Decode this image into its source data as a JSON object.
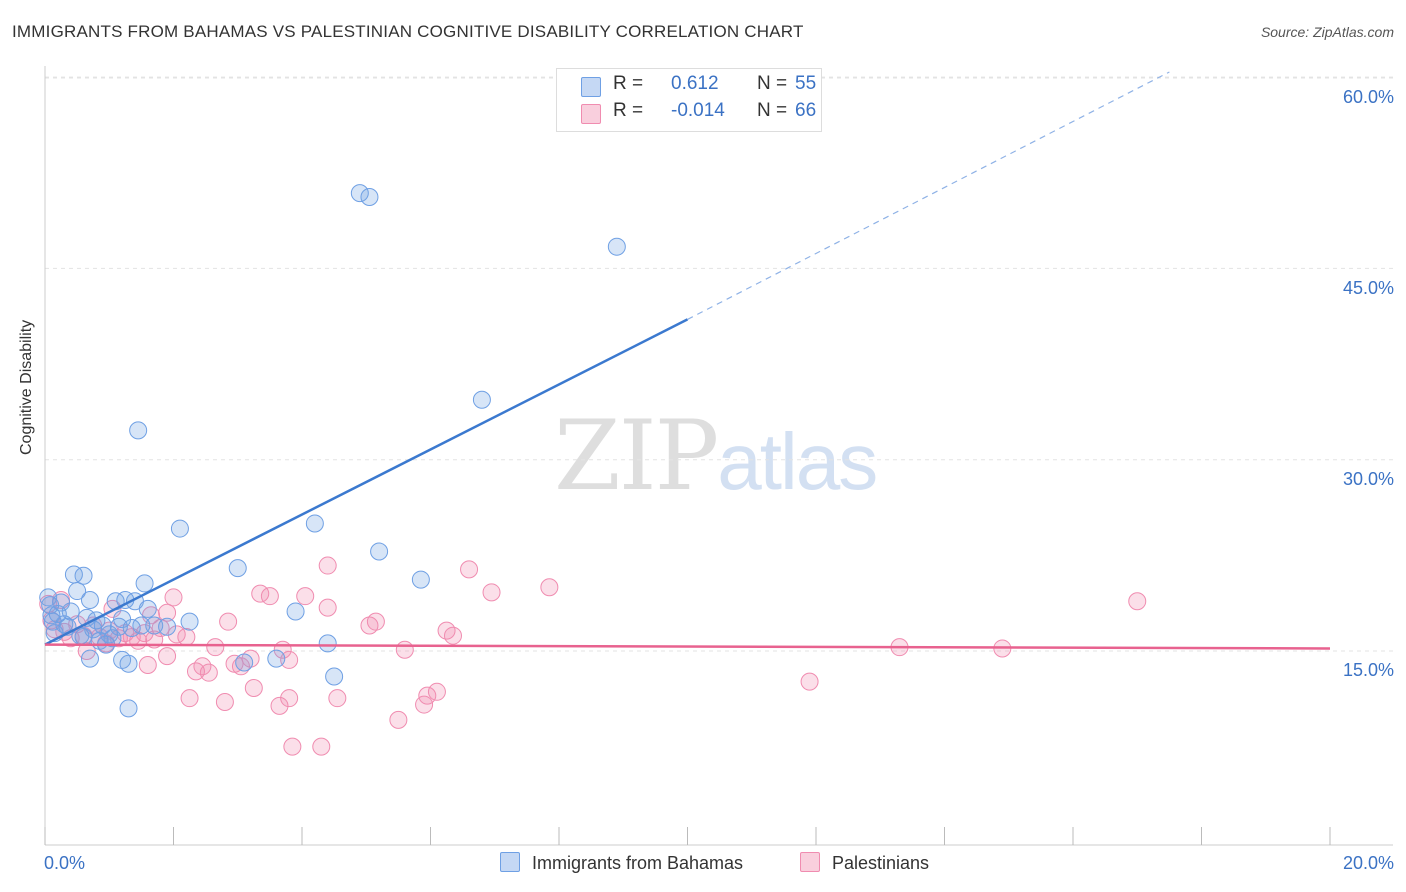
{
  "title": "IMMIGRANTS FROM BAHAMAS VS PALESTINIAN COGNITIVE DISABILITY CORRELATION CHART",
  "source": "Source: ZipAtlas.com",
  "watermark": {
    "zip": "ZIP",
    "atlas": "atlas"
  },
  "legend_top": {
    "rows": [
      {
        "r_label": "R =",
        "r_value": "0.612",
        "n_label": "N =",
        "n_value": "55",
        "color": "#6fa0e4"
      },
      {
        "r_label": "R =",
        "r_value": "-0.014",
        "n_label": "N =",
        "n_value": "66",
        "color": "#f08cb0"
      }
    ]
  },
  "legend_bottom": {
    "items": [
      {
        "label": "Immigrants from Bahamas",
        "color": "#6fa0e4"
      },
      {
        "label": "Palestinians",
        "color": "#f08cb0"
      }
    ]
  },
  "chart_data": {
    "type": "scatter",
    "title": "IMMIGRANTS FROM BAHAMAS VS PALESTINIAN COGNITIVE DISABILITY CORRELATION CHART",
    "xlabel": "",
    "ylabel": "Cognitive Disability",
    "xlim": [
      0,
      20
    ],
    "ylim": [
      0,
      61.5
    ],
    "x_tick_labels": [
      "0.0%",
      "20.0%"
    ],
    "y_ticks": [
      15,
      30,
      45,
      60
    ],
    "y_tick_labels": [
      "15.0%",
      "30.0%",
      "45.0%",
      "60.0%"
    ],
    "grid": true,
    "legend_placement": "bottom",
    "series": [
      {
        "name": "Immigrants from Bahamas",
        "color": "#6fa0e4",
        "trend": {
          "x0": 0.0,
          "y0": 15.5,
          "x1": 10.0,
          "y1": 41.0,
          "dashed_to_x": 17.5,
          "dashed_to_y": 60.4
        },
        "points": [
          [
            0.05,
            19.2
          ],
          [
            0.08,
            18.6
          ],
          [
            0.1,
            17.8
          ],
          [
            0.12,
            17.3
          ],
          [
            0.15,
            16.4
          ],
          [
            0.2,
            17.9
          ],
          [
            0.25,
            18.8
          ],
          [
            0.3,
            17.1
          ],
          [
            0.35,
            16.9
          ],
          [
            0.4,
            18.1
          ],
          [
            0.45,
            21.0
          ],
          [
            0.5,
            19.7
          ],
          [
            0.55,
            16.2
          ],
          [
            0.6,
            20.9
          ],
          [
            0.65,
            17.6
          ],
          [
            0.7,
            19.0
          ],
          [
            0.7,
            14.4
          ],
          [
            0.75,
            16.7
          ],
          [
            0.8,
            17.4
          ],
          [
            0.85,
            15.8
          ],
          [
            0.9,
            17.0
          ],
          [
            0.95,
            15.5
          ],
          [
            1.0,
            16.3
          ],
          [
            1.05,
            16.0
          ],
          [
            1.1,
            18.9
          ],
          [
            1.15,
            16.9
          ],
          [
            1.2,
            17.5
          ],
          [
            1.2,
            14.3
          ],
          [
            1.25,
            19.0
          ],
          [
            1.3,
            14.0
          ],
          [
            1.3,
            10.5
          ],
          [
            1.35,
            16.8
          ],
          [
            1.4,
            18.9
          ],
          [
            1.45,
            32.3
          ],
          [
            1.5,
            17.0
          ],
          [
            1.55,
            20.3
          ],
          [
            1.6,
            18.3
          ],
          [
            1.7,
            17.0
          ],
          [
            2.1,
            24.6
          ],
          [
            2.25,
            17.3
          ],
          [
            3.0,
            21.5
          ],
          [
            3.1,
            14.1
          ],
          [
            3.6,
            14.4
          ],
          [
            3.9,
            18.1
          ],
          [
            4.2,
            25.0
          ],
          [
            4.4,
            15.6
          ],
          [
            4.5,
            13.0
          ],
          [
            4.9,
            50.9
          ],
          [
            5.05,
            50.6
          ],
          [
            5.2,
            22.8
          ],
          [
            5.85,
            20.6
          ],
          [
            6.8,
            34.7
          ],
          [
            8.9,
            46.7
          ],
          [
            1.9,
            16.9
          ],
          [
            0.6,
            16.1
          ]
        ]
      },
      {
        "name": "Palestinians",
        "color": "#f08cb0",
        "trend": {
          "x0": 0.0,
          "y0": 15.5,
          "x1": 20.0,
          "y1": 15.2
        },
        "points": [
          [
            0.05,
            18.7
          ],
          [
            0.1,
            17.4
          ],
          [
            0.15,
            16.7
          ],
          [
            0.25,
            19.0
          ],
          [
            0.3,
            16.5
          ],
          [
            0.4,
            16.0
          ],
          [
            0.5,
            17.1
          ],
          [
            0.6,
            16.2
          ],
          [
            0.65,
            15.0
          ],
          [
            0.75,
            17.0
          ],
          [
            0.85,
            16.1
          ],
          [
            0.95,
            15.6
          ],
          [
            1.0,
            16.6
          ],
          [
            1.05,
            18.3
          ],
          [
            1.15,
            16.0
          ],
          [
            1.25,
            16.4
          ],
          [
            1.35,
            16.1
          ],
          [
            1.45,
            15.8
          ],
          [
            1.55,
            16.4
          ],
          [
            1.6,
            13.9
          ],
          [
            1.65,
            17.8
          ],
          [
            1.7,
            15.9
          ],
          [
            1.8,
            16.8
          ],
          [
            1.9,
            18.0
          ],
          [
            1.9,
            14.6
          ],
          [
            2.0,
            19.2
          ],
          [
            2.05,
            16.3
          ],
          [
            2.2,
            16.1
          ],
          [
            2.25,
            11.3
          ],
          [
            2.35,
            13.4
          ],
          [
            2.45,
            13.8
          ],
          [
            2.55,
            13.3
          ],
          [
            2.65,
            15.3
          ],
          [
            2.8,
            11.0
          ],
          [
            2.85,
            17.3
          ],
          [
            2.95,
            14.0
          ],
          [
            3.05,
            13.8
          ],
          [
            3.2,
            14.4
          ],
          [
            3.25,
            12.1
          ],
          [
            3.35,
            19.5
          ],
          [
            3.5,
            19.3
          ],
          [
            3.65,
            10.7
          ],
          [
            3.7,
            15.1
          ],
          [
            3.8,
            14.3
          ],
          [
            3.8,
            11.3
          ],
          [
            3.85,
            7.5
          ],
          [
            4.05,
            19.3
          ],
          [
            4.3,
            7.5
          ],
          [
            4.4,
            21.7
          ],
          [
            4.4,
            18.4
          ],
          [
            4.55,
            11.3
          ],
          [
            5.05,
            17.0
          ],
          [
            5.15,
            17.3
          ],
          [
            5.5,
            9.6
          ],
          [
            5.6,
            15.1
          ],
          [
            5.9,
            10.8
          ],
          [
            5.95,
            11.5
          ],
          [
            6.1,
            11.8
          ],
          [
            6.25,
            16.6
          ],
          [
            6.35,
            16.2
          ],
          [
            6.6,
            21.4
          ],
          [
            6.95,
            19.6
          ],
          [
            7.85,
            20.0
          ],
          [
            11.9,
            12.6
          ],
          [
            13.3,
            15.3
          ],
          [
            14.9,
            15.2
          ],
          [
            17.0,
            18.9
          ]
        ]
      }
    ]
  }
}
